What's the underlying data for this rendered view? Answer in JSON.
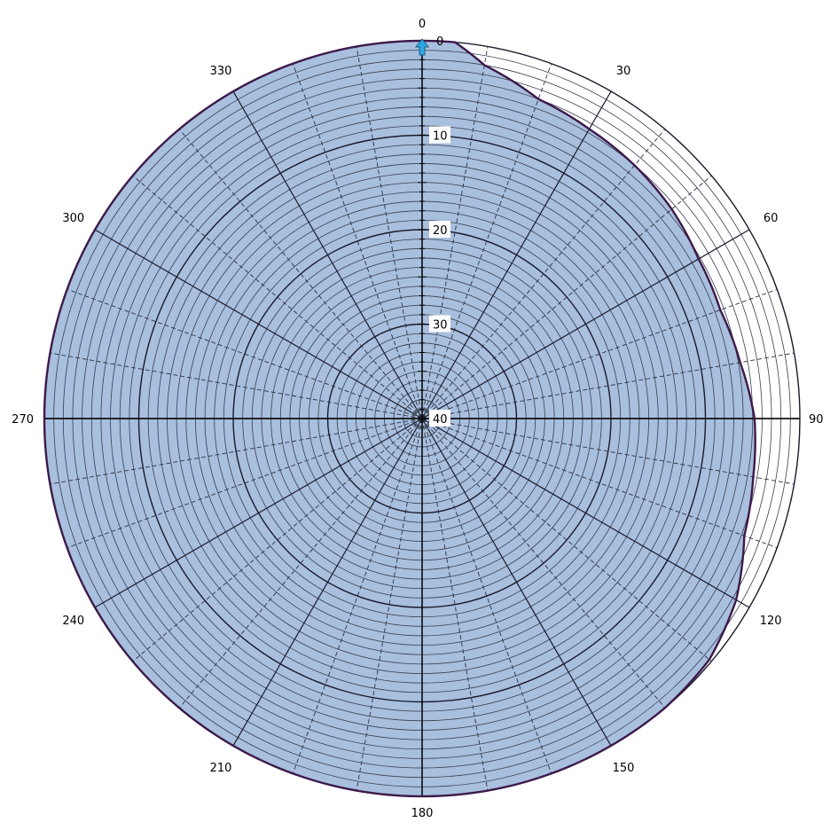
{
  "chart_data": {
    "type": "polar-area",
    "title": "",
    "angle_unit": "degrees",
    "angle_direction": "clockwise",
    "angle_zero": "top",
    "angle_labels": [
      "0",
      "30",
      "60",
      "90",
      "120",
      "150",
      "180",
      "210",
      "240",
      "270",
      "300",
      "330"
    ],
    "angle_values": [
      0,
      30,
      60,
      90,
      120,
      150,
      180,
      210,
      240,
      270,
      300,
      330
    ],
    "radial_axis": {
      "inverted": true,
      "min": 0,
      "max": 40,
      "tick_labels": [
        "0",
        "10",
        "20",
        "30",
        "40"
      ],
      "tick_values": [
        0,
        10,
        20,
        30,
        40
      ],
      "minor_step": 1
    },
    "radial_grid": {
      "major_step": 10,
      "minor_step": 1,
      "solid_spokes_every": 30,
      "dashed_spokes_every": 10
    },
    "series": [
      {
        "color": "#a8bfde",
        "stroke": "#3c1a4a",
        "points": [
          {
            "angle": 0,
            "value": 0.0
          },
          {
            "angle": 5,
            "value": 0.0
          },
          {
            "angle": 10,
            "value": 2.0
          },
          {
            "angle": 20,
            "value": 4.0
          },
          {
            "angle": 30,
            "value": 4.6
          },
          {
            "angle": 40,
            "value": 5.0
          },
          {
            "angle": 50,
            "value": 5.5
          },
          {
            "angle": 60,
            "value": 6.2
          },
          {
            "angle": 70,
            "value": 6.4
          },
          {
            "angle": 80,
            "value": 5.8
          },
          {
            "angle": 90,
            "value": 4.8
          },
          {
            "angle": 100,
            "value": 4.4
          },
          {
            "angle": 110,
            "value": 3.7
          },
          {
            "angle": 120,
            "value": 1.6
          },
          {
            "angle": 130,
            "value": 0.3
          },
          {
            "angle": 140,
            "value": 0.0
          },
          {
            "angle": 180,
            "value": 0.0
          },
          {
            "angle": 270,
            "value": 0.0
          },
          {
            "angle": 355,
            "value": 0.0
          }
        ]
      }
    ],
    "marker": {
      "angle": 0,
      "value": 0,
      "color": "#2ea8e0",
      "icon": "arrow-up-icon"
    }
  }
}
